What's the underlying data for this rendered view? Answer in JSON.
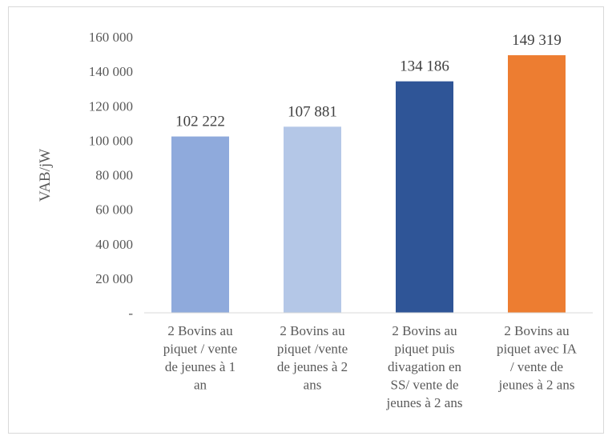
{
  "chart_data": {
    "type": "bar",
    "ylabel": "VAB/jW",
    "ylim": [
      0,
      160000
    ],
    "yticks": [
      {
        "value": 0,
        "label": "-"
      },
      {
        "value": 20000,
        "label": "20 000"
      },
      {
        "value": 40000,
        "label": "40 000"
      },
      {
        "value": 60000,
        "label": "60 000"
      },
      {
        "value": 80000,
        "label": "80 000"
      },
      {
        "value": 100000,
        "label": "100 000"
      },
      {
        "value": 120000,
        "label": "120 000"
      },
      {
        "value": 140000,
        "label": "140 000"
      },
      {
        "value": 160000,
        "label": "160 000"
      }
    ],
    "grid": false,
    "bars": [
      {
        "label_lines": [
          "2 Bovins au",
          "piquet / vente",
          "de jeunes à 1",
          "an"
        ],
        "value": 102222,
        "value_label": "102 222",
        "color": "#8faadc"
      },
      {
        "label_lines": [
          "2 Bovins au",
          "piquet /vente",
          "de jeunes à 2",
          "ans"
        ],
        "value": 107881,
        "value_label": "107 881",
        "color": "#b4c7e7"
      },
      {
        "label_lines": [
          "2 Bovins au",
          "piquet puis",
          "divagation en",
          "SS/ vente de",
          "jeunes à 2 ans"
        ],
        "value": 134186,
        "value_label": "134 186",
        "color": "#2f5597"
      },
      {
        "label_lines": [
          "2 Bovins au",
          "piquet avec IA",
          "/ vente de",
          "jeunes à 2 ans"
        ],
        "value": 149319,
        "value_label": "149 319",
        "color": "#ed7d31"
      }
    ]
  }
}
